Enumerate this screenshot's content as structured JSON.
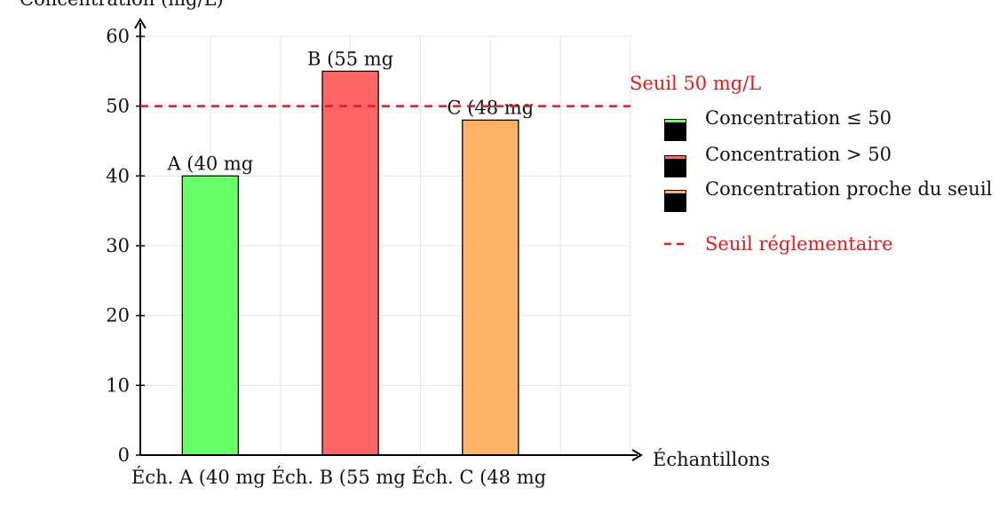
{
  "chart_data": {
    "type": "bar",
    "ylabel": "Concentration (mg/L)",
    "xlabel": "Échantillons",
    "ylim": [
      0,
      60
    ],
    "yticks": [
      0,
      10,
      20,
      30,
      40,
      50,
      60
    ],
    "xlim": [
      0,
      7
    ],
    "grid": true,
    "bars": [
      {
        "x": 1,
        "value": 40,
        "label": "A (40 mg",
        "tick": "Éch. A (40 mg",
        "color": "#66ff66"
      },
      {
        "x": 3,
        "value": 55,
        "label": "B (55 mg",
        "tick": "Éch. B (55 mg",
        "color": "#ff6666"
      },
      {
        "x": 5,
        "value": 48,
        "label": "C (48 mg",
        "tick": "Éch. C (48 mg",
        "color": "#ffb366"
      }
    ],
    "threshold": {
      "value": 50,
      "label": "Seuil 50 mg/L",
      "color": "#e31a1c"
    },
    "legend": {
      "placement": "right",
      "items": [
        {
          "label": "Concentration ≤ 50",
          "color": "#66ff66"
        },
        {
          "label": "Concentration > 50",
          "color": "#ff6666"
        },
        {
          "label": "Concentration proche du seuil",
          "color": "#ffb366"
        },
        {
          "label": "Seuil réglementaire",
          "color": "#e31a1c",
          "dashed": true
        }
      ]
    }
  }
}
